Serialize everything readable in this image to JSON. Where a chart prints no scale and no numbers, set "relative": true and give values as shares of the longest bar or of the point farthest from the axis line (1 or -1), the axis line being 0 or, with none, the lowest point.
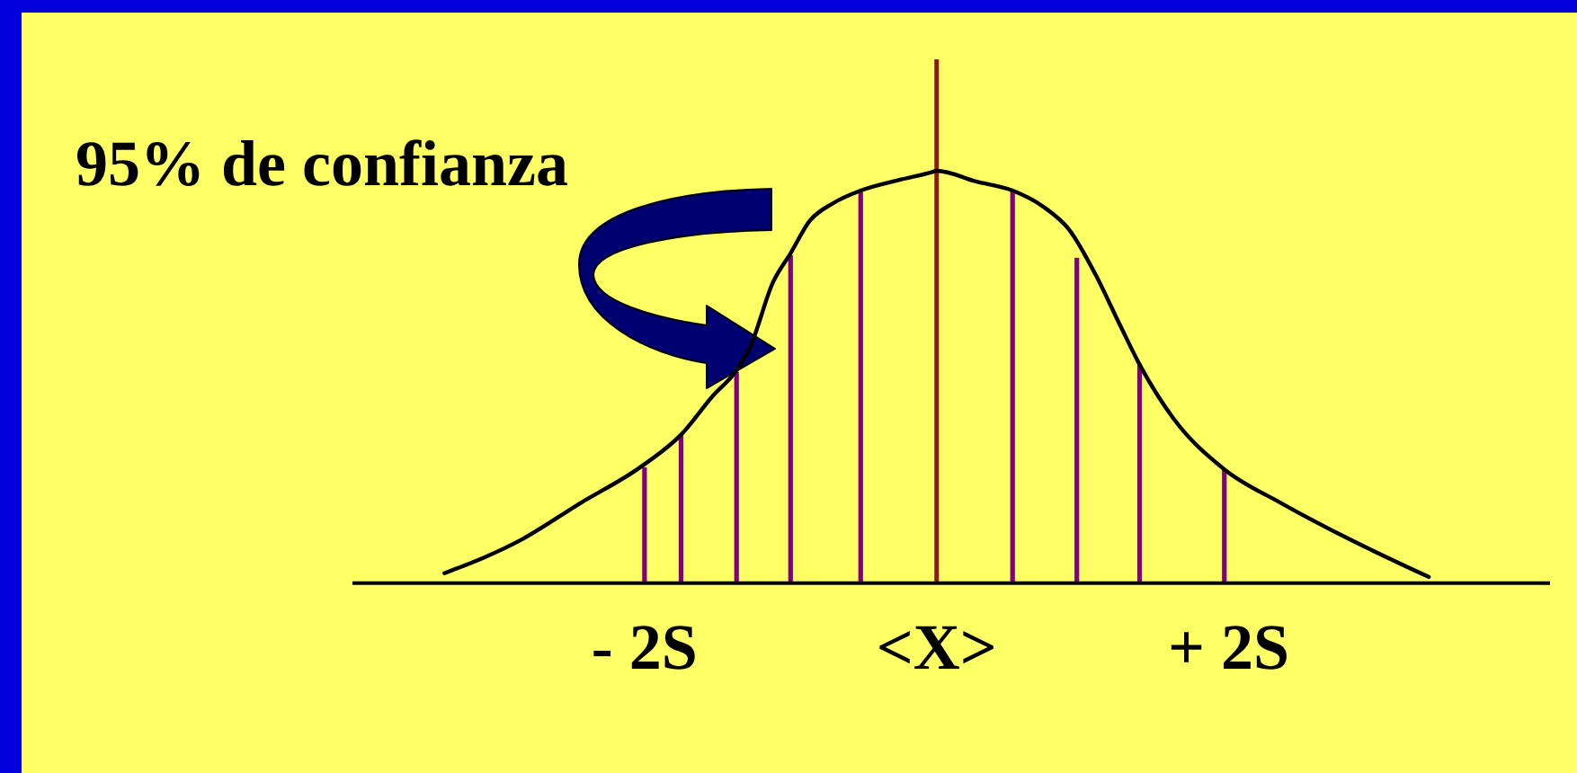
{
  "chart_data": {
    "type": "line",
    "relative": true,
    "annotations": [
      "95% de confianza"
    ],
    "xlim": [
      -4,
      4.2
    ],
    "xticks": [
      {
        "value": -2,
        "label": "- 2S"
      },
      {
        "value": 0,
        "label": "<X>"
      },
      {
        "value": 2,
        "label": "+ 2S"
      }
    ],
    "marker": "none",
    "series": [
      {
        "color": "#000000",
        "x": [
          -3.37,
          -2.84,
          -2.44,
          -2.03,
          -1.75,
          -1.53,
          -1.37,
          -1.28,
          -1.12,
          -1.0,
          -0.87,
          -0.71,
          -0.52,
          -0.3,
          -0.04,
          0,
          0.27,
          0.52,
          0.73,
          0.91,
          1.09,
          1.25,
          1.39,
          1.62,
          1.97,
          2.36,
          2.78,
          3.37
        ],
        "values": [
          0.024,
          0.106,
          0.194,
          0.281,
          0.36,
          0.455,
          0.516,
          0.57,
          0.73,
          0.8,
          0.878,
          0.921,
          0.952,
          0.974,
          0.996,
          1,
          0.974,
          0.952,
          0.913,
          0.856,
          0.747,
          0.63,
          0.53,
          0.4,
          0.276,
          0.194,
          0.115,
          0.015
        ]
      },
      {
        "type": "bar",
        "color": "#800080",
        "x": [
          -2,
          -1.75,
          -1.37,
          -1,
          -0.52,
          0.52,
          0.96,
          1.39,
          1.97
        ],
        "values": [
          0.281,
          0.36,
          0.512,
          0.795,
          0.949,
          0.952,
          0.789,
          0.53,
          0.276
        ]
      }
    ],
    "ref_lines": [
      {
        "axis": "x",
        "value": 0,
        "color": "#8b1a1a"
      }
    ]
  }
}
